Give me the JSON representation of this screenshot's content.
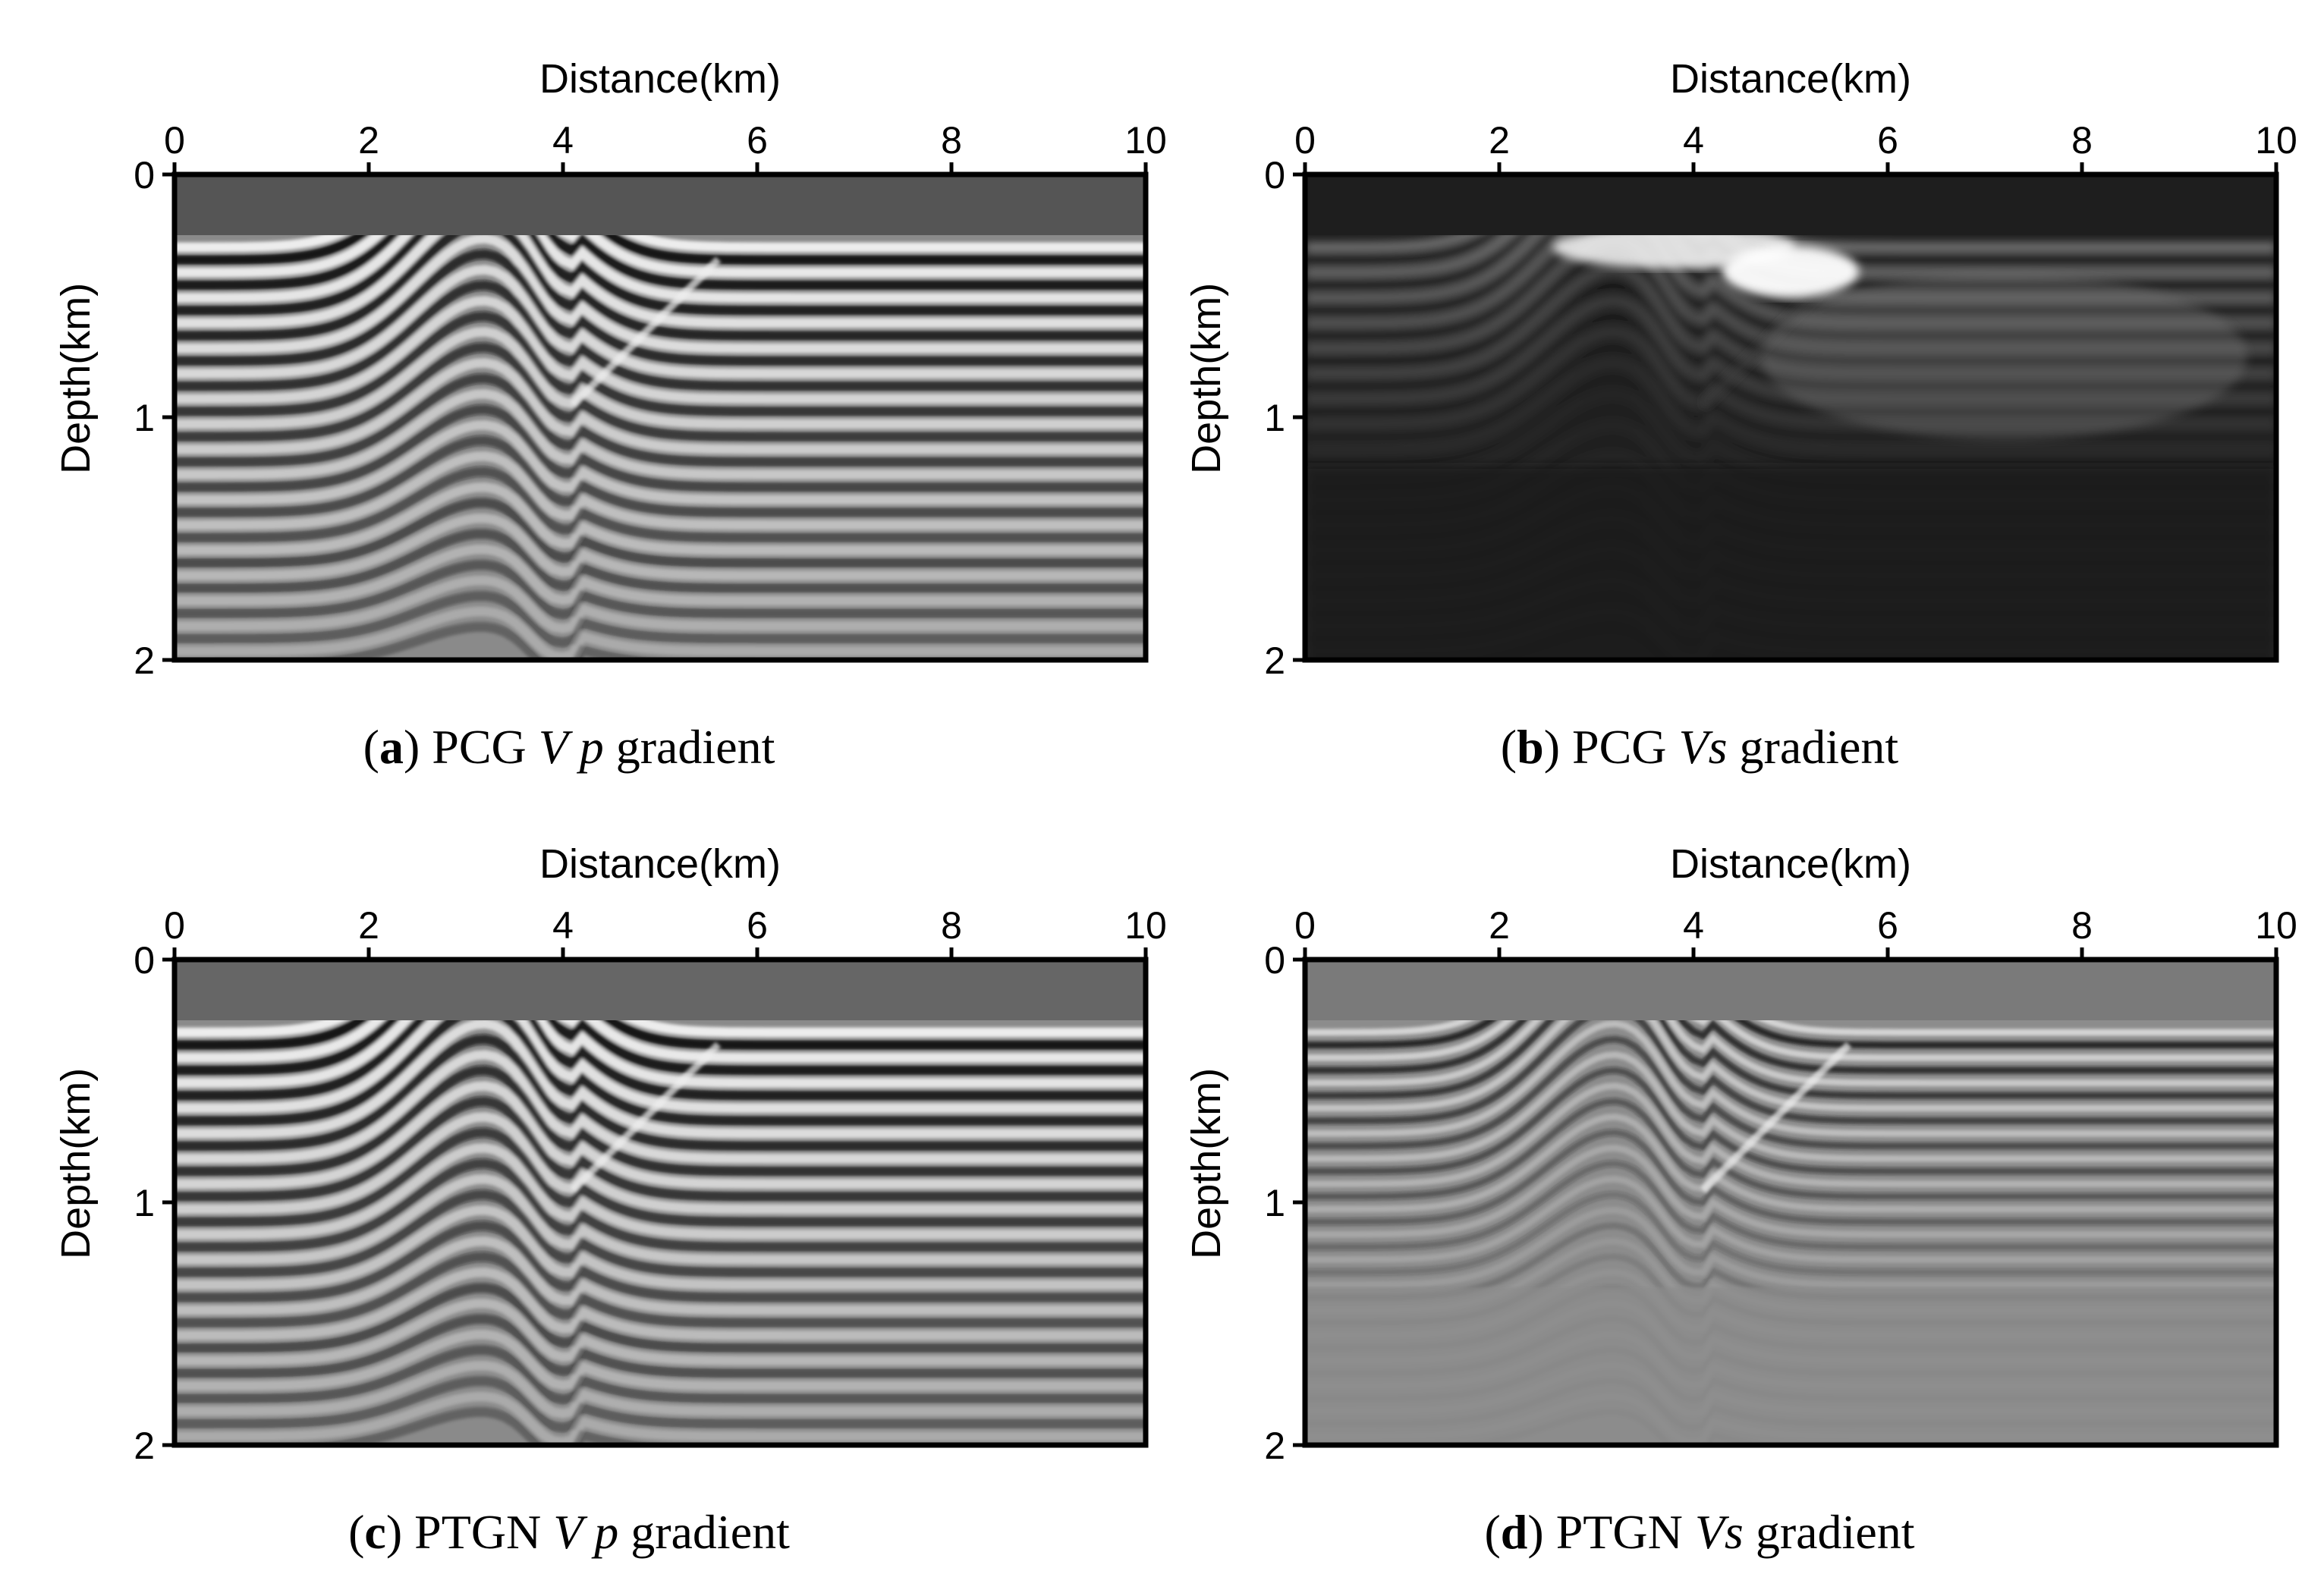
{
  "chart_data": [
    {
      "type": "heatmap",
      "panel_letter": "a",
      "caption_prefix": "PCG",
      "caption_var": "V p",
      "caption_suffix": "gradient",
      "xlabel": "Distance(km)",
      "ylabel": "Depth(km)",
      "xlim": [
        0,
        10
      ],
      "ylim": [
        0,
        2
      ],
      "xticks": [
        "0",
        "2",
        "4",
        "6",
        "8",
        "10"
      ],
      "yticks": [
        "0",
        "1",
        "2"
      ],
      "water_color": "#555555",
      "background_color": "#8a8a8a",
      "style": "strong"
    },
    {
      "type": "heatmap",
      "panel_letter": "b",
      "caption_prefix": "PCG",
      "caption_var": "Vs",
      "caption_suffix": "gradient",
      "xlabel": "Distance(km)",
      "ylabel": "Depth(km)",
      "xlim": [
        0,
        10
      ],
      "ylim": [
        0,
        2
      ],
      "xticks": [
        "0",
        "2",
        "4",
        "6",
        "8",
        "10"
      ],
      "yticks": [
        "0",
        "1",
        "2"
      ],
      "water_color": "#1e1e1e",
      "background_color": "#202020",
      "style": "dark"
    },
    {
      "type": "heatmap",
      "panel_letter": "c",
      "caption_prefix": "PTGN",
      "caption_var": "V p",
      "caption_suffix": "gradient",
      "xlabel": "Distance(km)",
      "ylabel": "Depth(km)",
      "xlim": [
        0,
        10
      ],
      "ylim": [
        0,
        2
      ],
      "xticks": [
        "0",
        "2",
        "4",
        "6",
        "8",
        "10"
      ],
      "yticks": [
        "0",
        "1",
        "2"
      ],
      "water_color": "#666666",
      "background_color": "#8a8a8a",
      "style": "strong"
    },
    {
      "type": "heatmap",
      "panel_letter": "d",
      "caption_prefix": "PTGN",
      "caption_var": "Vs",
      "caption_suffix": "gradient",
      "xlabel": "Distance(km)",
      "ylabel": "Depth(km)",
      "xlim": [
        0,
        10
      ],
      "ylim": [
        0,
        2
      ],
      "xticks": [
        "0",
        "2",
        "4",
        "6",
        "8",
        "10"
      ],
      "yticks": [
        "0",
        "1",
        "2"
      ],
      "water_color": "#7a7a7a",
      "background_color": "#8c8c8c",
      "style": "soft"
    }
  ]
}
